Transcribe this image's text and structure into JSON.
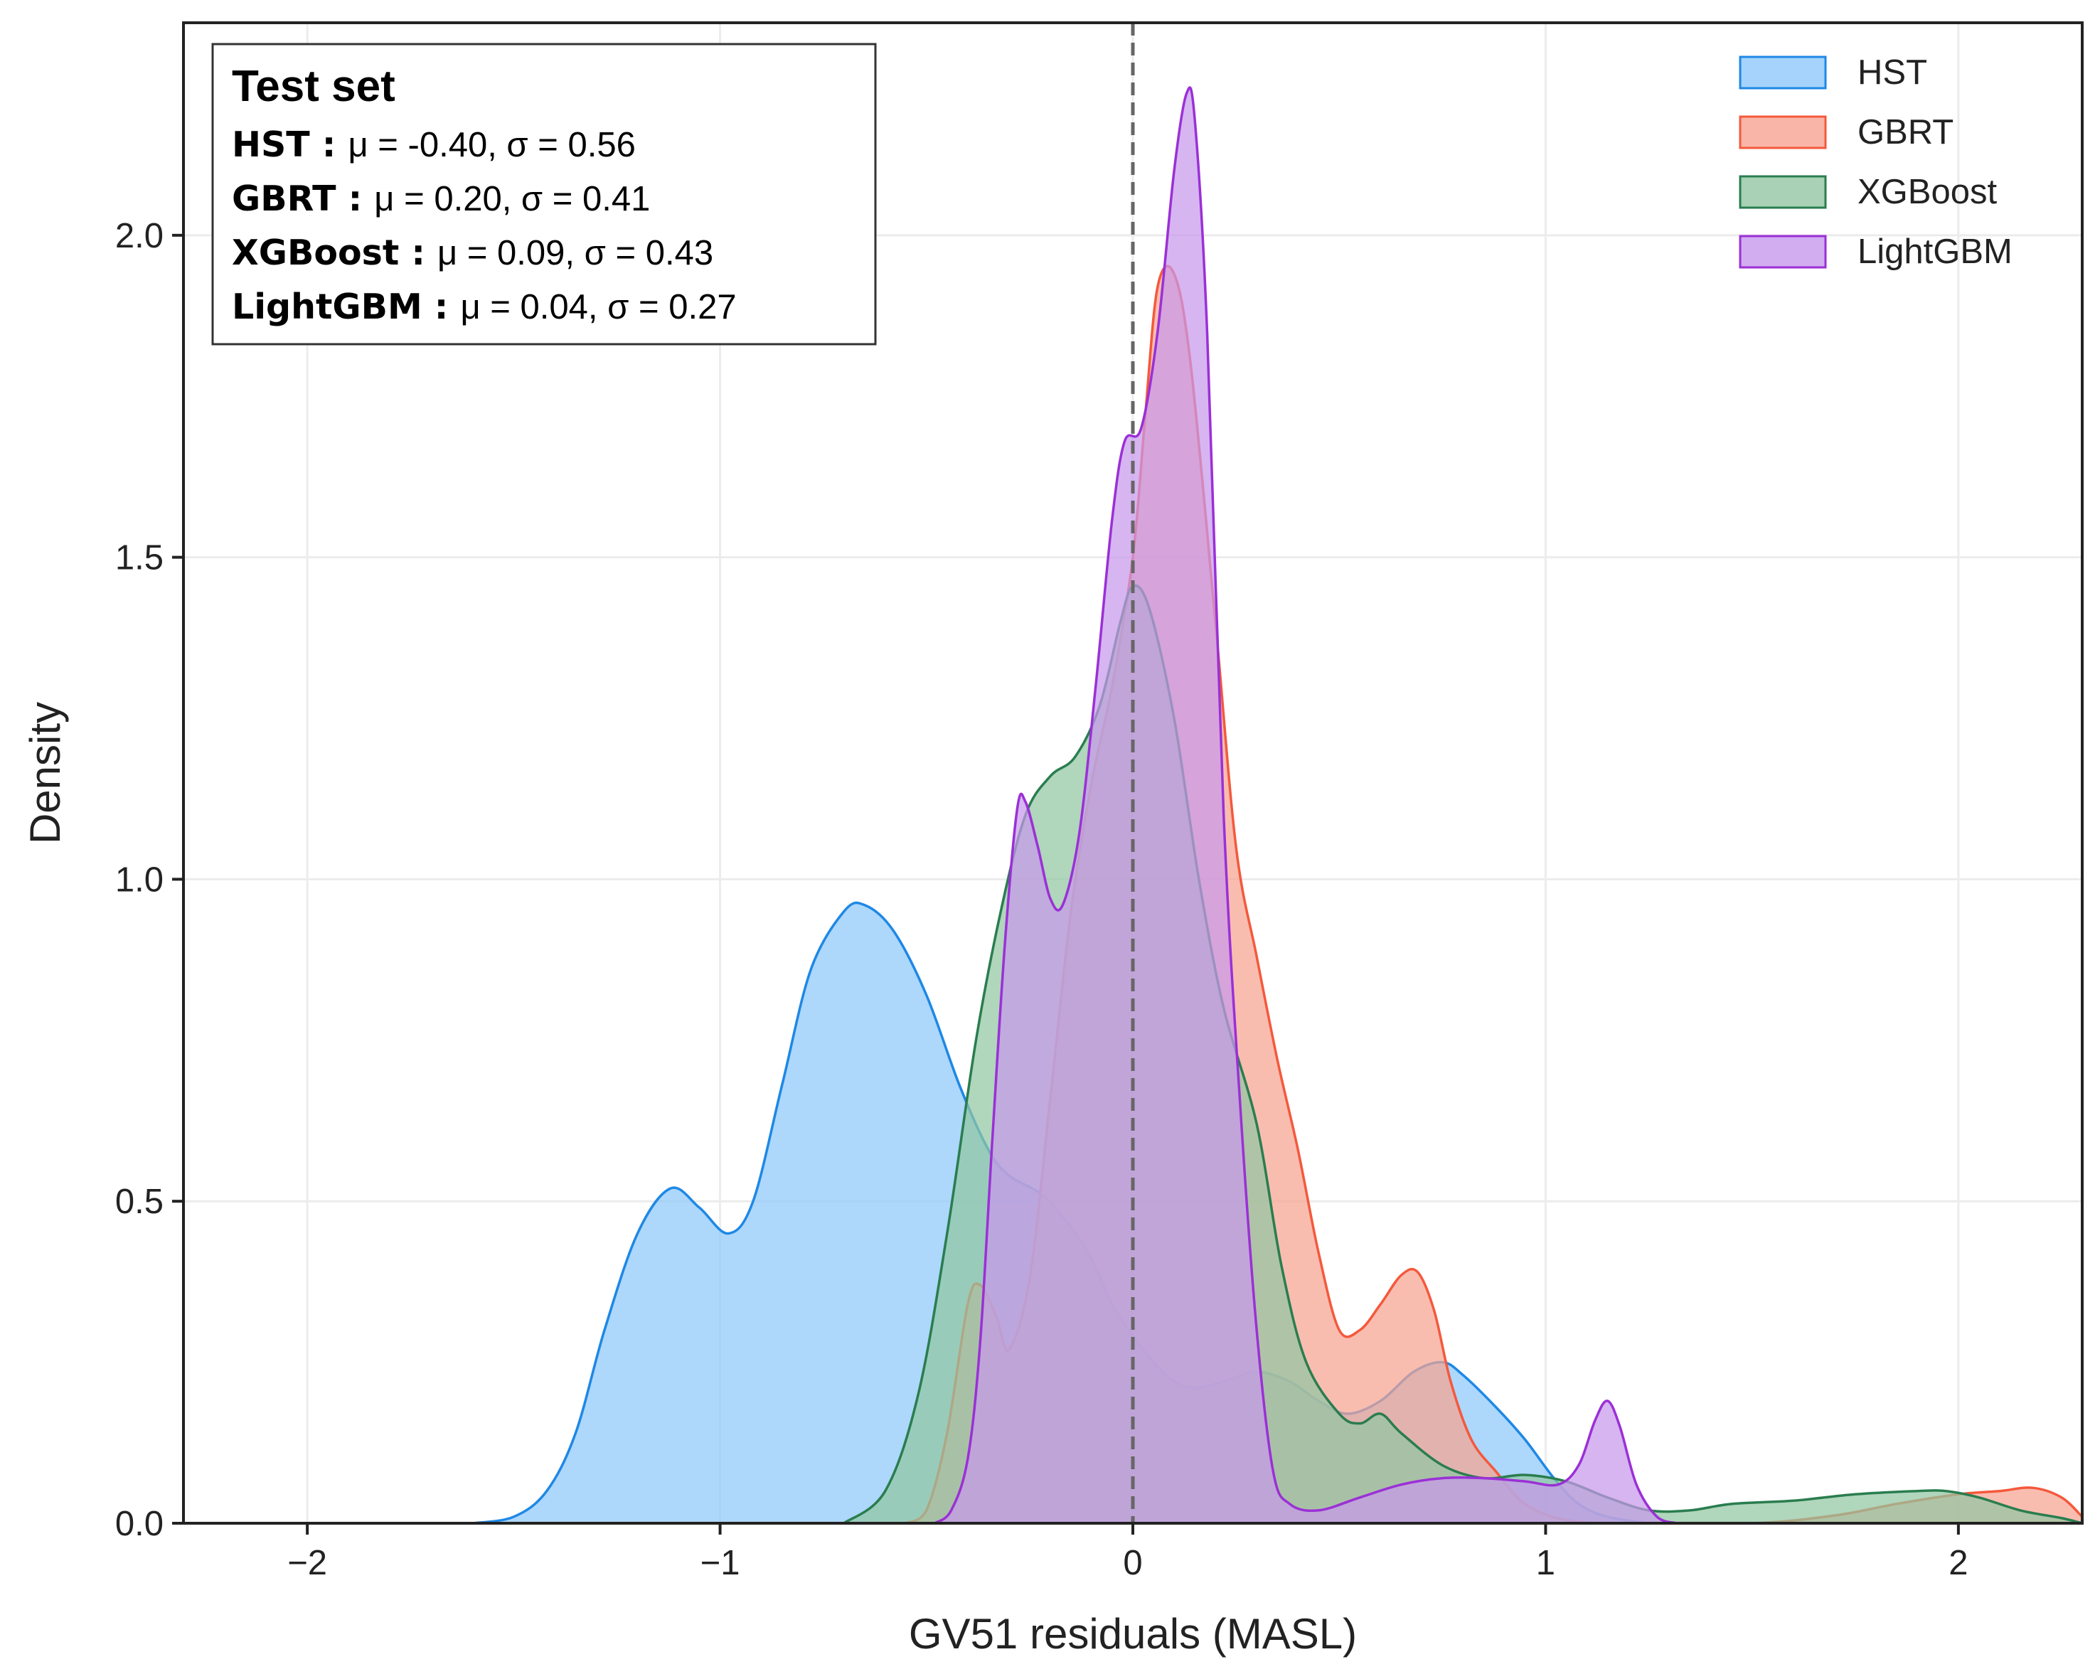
{
  "chart_data": {
    "type": "area",
    "xlabel": "GV51 residuals (MASL)",
    "ylabel": "Density",
    "xlim": [
      -2.3,
      2.3
    ],
    "ylim": [
      0,
      2.33
    ],
    "x_ticks": [
      -2,
      -1,
      0,
      1,
      2
    ],
    "x_tick_labels": [
      "−2",
      "−1",
      "0",
      "1",
      "2"
    ],
    "y_ticks": [
      0.0,
      0.5,
      1.0,
      1.5,
      2.0
    ],
    "y_tick_labels": [
      "0.0",
      "0.5",
      "1.0",
      "1.5",
      "2.0"
    ],
    "grid": true,
    "reference_line": {
      "x": 0,
      "style": "dashed",
      "color": "#666666"
    },
    "legend_position": "top-right",
    "stats_box": {
      "title": "Test set",
      "rows": [
        {
          "name": "HST :",
          "text": "μ = -0.40, σ = 0.56"
        },
        {
          "name": "GBRT :",
          "text": "μ = 0.20, σ = 0.41"
        },
        {
          "name": "XGBoost :",
          "text": "μ = 0.09, σ = 0.43"
        },
        {
          "name": "LightGBM :",
          "text": "μ = 0.04, σ = 0.27"
        }
      ]
    },
    "series": [
      {
        "name": "HST",
        "color": "#1e88e5",
        "fill": "#8ec8fa",
        "points": [
          [
            -1.6,
            0
          ],
          [
            -1.5,
            0.01
          ],
          [
            -1.42,
            0.05
          ],
          [
            -1.35,
            0.14
          ],
          [
            -1.28,
            0.3
          ],
          [
            -1.2,
            0.45
          ],
          [
            -1.12,
            0.52
          ],
          [
            -1.05,
            0.49
          ],
          [
            -0.98,
            0.45
          ],
          [
            -0.92,
            0.5
          ],
          [
            -0.85,
            0.68
          ],
          [
            -0.78,
            0.86
          ],
          [
            -0.7,
            0.95
          ],
          [
            -0.65,
            0.96
          ],
          [
            -0.58,
            0.92
          ],
          [
            -0.5,
            0.82
          ],
          [
            -0.42,
            0.68
          ],
          [
            -0.35,
            0.58
          ],
          [
            -0.3,
            0.54
          ],
          [
            -0.22,
            0.51
          ],
          [
            -0.15,
            0.46
          ],
          [
            -0.1,
            0.41
          ],
          [
            -0.05,
            0.34
          ],
          [
            0,
            0.29
          ],
          [
            0.05,
            0.25
          ],
          [
            0.1,
            0.22
          ],
          [
            0.15,
            0.21
          ],
          [
            0.22,
            0.22
          ],
          [
            0.3,
            0.235
          ],
          [
            0.38,
            0.22
          ],
          [
            0.45,
            0.19
          ],
          [
            0.52,
            0.17
          ],
          [
            0.6,
            0.19
          ],
          [
            0.68,
            0.235
          ],
          [
            0.75,
            0.25
          ],
          [
            0.8,
            0.23
          ],
          [
            0.88,
            0.18
          ],
          [
            0.95,
            0.13
          ],
          [
            1.02,
            0.07
          ],
          [
            1.08,
            0.03
          ],
          [
            1.15,
            0.01
          ],
          [
            1.25,
            0
          ]
        ]
      },
      {
        "name": "GBRT",
        "color": "#f4593c",
        "fill": "#f7a492",
        "points": [
          [
            -0.55,
            0
          ],
          [
            -0.5,
            0.02
          ],
          [
            -0.45,
            0.14
          ],
          [
            -0.4,
            0.34
          ],
          [
            -0.37,
            0.37
          ],
          [
            -0.33,
            0.32
          ],
          [
            -0.3,
            0.27
          ],
          [
            -0.25,
            0.38
          ],
          [
            -0.2,
            0.66
          ],
          [
            -0.15,
            0.95
          ],
          [
            -0.1,
            1.15
          ],
          [
            -0.05,
            1.3
          ],
          [
            0,
            1.5
          ],
          [
            0.03,
            1.72
          ],
          [
            0.06,
            1.92
          ],
          [
            0.1,
            1.94
          ],
          [
            0.14,
            1.8
          ],
          [
            0.2,
            1.4
          ],
          [
            0.25,
            1.05
          ],
          [
            0.3,
            0.88
          ],
          [
            0.35,
            0.72
          ],
          [
            0.4,
            0.58
          ],
          [
            0.45,
            0.42
          ],
          [
            0.5,
            0.3
          ],
          [
            0.55,
            0.3
          ],
          [
            0.6,
            0.34
          ],
          [
            0.65,
            0.385
          ],
          [
            0.69,
            0.39
          ],
          [
            0.73,
            0.33
          ],
          [
            0.77,
            0.22
          ],
          [
            0.82,
            0.13
          ],
          [
            0.88,
            0.08
          ],
          [
            0.95,
            0.03
          ],
          [
            1.05,
            0.005
          ],
          [
            1.2,
            0
          ],
          [
            1.5,
            0
          ],
          [
            1.7,
            0.012
          ],
          [
            1.85,
            0.03
          ],
          [
            2.0,
            0.045
          ],
          [
            2.1,
            0.05
          ],
          [
            2.18,
            0.055
          ],
          [
            2.25,
            0.04
          ],
          [
            2.3,
            0.01
          ]
        ]
      },
      {
        "name": "XGBoost",
        "color": "#2a7d4f",
        "fill": "#92c6a2",
        "points": [
          [
            -0.7,
            0
          ],
          [
            -0.6,
            0.05
          ],
          [
            -0.52,
            0.2
          ],
          [
            -0.45,
            0.45
          ],
          [
            -0.38,
            0.75
          ],
          [
            -0.32,
            0.95
          ],
          [
            -0.26,
            1.1
          ],
          [
            -0.2,
            1.16
          ],
          [
            -0.14,
            1.19
          ],
          [
            -0.08,
            1.27
          ],
          [
            -0.03,
            1.4
          ],
          [
            0,
            1.455
          ],
          [
            0.04,
            1.42
          ],
          [
            0.1,
            1.25
          ],
          [
            0.16,
            1.0
          ],
          [
            0.22,
            0.8
          ],
          [
            0.3,
            0.62
          ],
          [
            0.36,
            0.4
          ],
          [
            0.42,
            0.25
          ],
          [
            0.5,
            0.17
          ],
          [
            0.55,
            0.155
          ],
          [
            0.6,
            0.17
          ],
          [
            0.65,
            0.14
          ],
          [
            0.75,
            0.09
          ],
          [
            0.85,
            0.07
          ],
          [
            0.95,
            0.075
          ],
          [
            1.05,
            0.065
          ],
          [
            1.15,
            0.04
          ],
          [
            1.25,
            0.02
          ],
          [
            1.35,
            0.02
          ],
          [
            1.45,
            0.03
          ],
          [
            1.6,
            0.035
          ],
          [
            1.75,
            0.045
          ],
          [
            1.9,
            0.05
          ],
          [
            1.97,
            0.05
          ],
          [
            2.05,
            0.04
          ],
          [
            2.15,
            0.02
          ],
          [
            2.25,
            0.008
          ],
          [
            2.3,
            0
          ]
        ]
      },
      {
        "name": "LightGBM",
        "color": "#9b30d6",
        "fill": "#c799ec",
        "points": [
          [
            -0.48,
            0
          ],
          [
            -0.44,
            0.02
          ],
          [
            -0.4,
            0.1
          ],
          [
            -0.37,
            0.28
          ],
          [
            -0.34,
            0.6
          ],
          [
            -0.31,
            0.9
          ],
          [
            -0.28,
            1.11
          ],
          [
            -0.26,
            1.12
          ],
          [
            -0.23,
            1.05
          ],
          [
            -0.2,
            0.97
          ],
          [
            -0.17,
            0.96
          ],
          [
            -0.13,
            1.07
          ],
          [
            -0.09,
            1.3
          ],
          [
            -0.05,
            1.56
          ],
          [
            -0.02,
            1.68
          ],
          [
            0.02,
            1.7
          ],
          [
            0.06,
            1.85
          ],
          [
            0.1,
            2.1
          ],
          [
            0.13,
            2.22
          ],
          [
            0.15,
            2.18
          ],
          [
            0.18,
            1.85
          ],
          [
            0.22,
            1.1
          ],
          [
            0.26,
            0.65
          ],
          [
            0.3,
            0.3
          ],
          [
            0.34,
            0.08
          ],
          [
            0.38,
            0.03
          ],
          [
            0.45,
            0.02
          ],
          [
            0.55,
            0.04
          ],
          [
            0.65,
            0.06
          ],
          [
            0.75,
            0.07
          ],
          [
            0.85,
            0.07
          ],
          [
            0.95,
            0.065
          ],
          [
            1.03,
            0.06
          ],
          [
            1.08,
            0.09
          ],
          [
            1.12,
            0.16
          ],
          [
            1.15,
            0.19
          ],
          [
            1.18,
            0.15
          ],
          [
            1.22,
            0.06
          ],
          [
            1.27,
            0.01
          ],
          [
            1.32,
            0
          ]
        ]
      }
    ]
  }
}
